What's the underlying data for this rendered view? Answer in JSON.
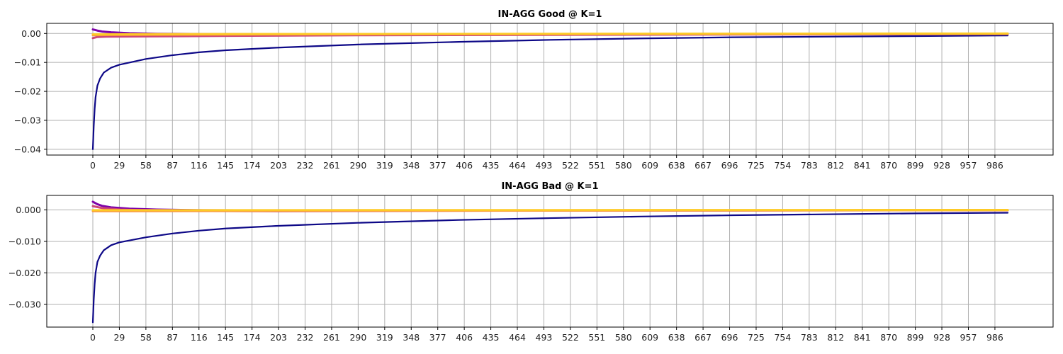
{
  "chart_data": [
    {
      "type": "line",
      "title": "IN-AGG Good @ K=1",
      "xlabel": "",
      "ylabel": "",
      "xlim": [
        0,
        1000
      ],
      "ylim": [
        -0.042,
        0.0035
      ],
      "grid": true,
      "x_ticks": [
        0,
        29,
        58,
        87,
        116,
        145,
        174,
        203,
        232,
        261,
        290,
        319,
        348,
        377,
        406,
        435,
        464,
        493,
        522,
        551,
        580,
        609,
        638,
        667,
        696,
        725,
        754,
        783,
        812,
        841,
        870,
        899,
        928,
        957,
        986
      ],
      "y_ticks": [
        0.0,
        -0.01,
        -0.02,
        -0.03,
        -0.04
      ],
      "y_tick_labels": [
        "0.00",
        "−0.01",
        "−0.02",
        "−0.03",
        "−0.04"
      ],
      "series": [
        {
          "color": "#0d0887",
          "values": [
            {
              "x": 0,
              "y": -0.04
            },
            {
              "x": 1,
              "y": -0.032
            },
            {
              "x": 2,
              "y": -0.026
            },
            {
              "x": 3,
              "y": -0.022
            },
            {
              "x": 5,
              "y": -0.018
            },
            {
              "x": 8,
              "y": -0.0155
            },
            {
              "x": 12,
              "y": -0.0135
            },
            {
              "x": 20,
              "y": -0.0118
            },
            {
              "x": 29,
              "y": -0.0108
            },
            {
              "x": 58,
              "y": -0.0088
            },
            {
              "x": 87,
              "y": -0.0075
            },
            {
              "x": 116,
              "y": -0.0065
            },
            {
              "x": 145,
              "y": -0.0058
            },
            {
              "x": 200,
              "y": -0.0049
            },
            {
              "x": 290,
              "y": -0.0038
            },
            {
              "x": 400,
              "y": -0.0029
            },
            {
              "x": 500,
              "y": -0.0022
            },
            {
              "x": 600,
              "y": -0.0017
            },
            {
              "x": 700,
              "y": -0.0013
            },
            {
              "x": 800,
              "y": -0.0011
            },
            {
              "x": 900,
              "y": -0.0009
            },
            {
              "x": 1000,
              "y": -0.0007
            }
          ]
        },
        {
          "color": "#7e03a8",
          "values": [
            {
              "x": 0,
              "y": 0.0014
            },
            {
              "x": 5,
              "y": 0.001
            },
            {
              "x": 10,
              "y": 0.0007
            },
            {
              "x": 20,
              "y": 0.0004
            },
            {
              "x": 40,
              "y": 0.0001
            },
            {
              "x": 70,
              "y": -0.0001
            },
            {
              "x": 120,
              "y": -0.0002
            },
            {
              "x": 300,
              "y": -0.0002
            },
            {
              "x": 1000,
              "y": -0.0001
            }
          ]
        },
        {
          "color": "#cc4778",
          "values": [
            {
              "x": 0,
              "y": -0.0016
            },
            {
              "x": 5,
              "y": -0.0012
            },
            {
              "x": 15,
              "y": -0.0011
            },
            {
              "x": 60,
              "y": -0.001
            },
            {
              "x": 150,
              "y": -0.0008
            },
            {
              "x": 300,
              "y": -0.0006
            },
            {
              "x": 600,
              "y": -0.0004
            },
            {
              "x": 1000,
              "y": -0.0002
            }
          ]
        },
        {
          "color": "#f89540",
          "values": [
            {
              "x": 0,
              "y": -0.0006
            },
            {
              "x": 20,
              "y": -0.0005
            },
            {
              "x": 100,
              "y": -0.0004
            },
            {
              "x": 400,
              "y": -0.0002
            },
            {
              "x": 1000,
              "y": -0.0001
            }
          ]
        },
        {
          "color": "#fdca26",
          "values": [
            {
              "x": 0,
              "y": -0.0003
            },
            {
              "x": 100,
              "y": -0.0002
            },
            {
              "x": 1000,
              "y": 0.0
            }
          ]
        }
      ]
    },
    {
      "type": "line",
      "title": "IN-AGG Bad @ K=1",
      "xlabel": "",
      "ylabel": "",
      "xlim": [
        0,
        1000
      ],
      "ylim": [
        -0.0372,
        0.0046
      ],
      "grid": true,
      "x_ticks": [
        0,
        29,
        58,
        87,
        116,
        145,
        174,
        203,
        232,
        261,
        290,
        319,
        348,
        377,
        406,
        435,
        464,
        493,
        522,
        551,
        580,
        609,
        638,
        667,
        696,
        725,
        754,
        783,
        812,
        841,
        870,
        899,
        928,
        957,
        986
      ],
      "y_ticks": [
        0.0,
        -0.01,
        -0.02,
        -0.03
      ],
      "y_tick_labels": [
        "0.000",
        "−0.010",
        "−0.020",
        "−0.030"
      ],
      "series": [
        {
          "color": "#0d0887",
          "values": [
            {
              "x": 0,
              "y": -0.0357
            },
            {
              "x": 1,
              "y": -0.0285
            },
            {
              "x": 2,
              "y": -0.0235
            },
            {
              "x": 3,
              "y": -0.02
            },
            {
              "x": 5,
              "y": -0.0165
            },
            {
              "x": 8,
              "y": -0.0145
            },
            {
              "x": 12,
              "y": -0.0128
            },
            {
              "x": 20,
              "y": -0.0112
            },
            {
              "x": 29,
              "y": -0.0103
            },
            {
              "x": 58,
              "y": -0.0087
            },
            {
              "x": 87,
              "y": -0.0075
            },
            {
              "x": 116,
              "y": -0.0066
            },
            {
              "x": 145,
              "y": -0.0059
            },
            {
              "x": 200,
              "y": -0.0051
            },
            {
              "x": 290,
              "y": -0.0041
            },
            {
              "x": 400,
              "y": -0.0032
            },
            {
              "x": 500,
              "y": -0.0026
            },
            {
              "x": 600,
              "y": -0.0021
            },
            {
              "x": 700,
              "y": -0.0017
            },
            {
              "x": 800,
              "y": -0.0014
            },
            {
              "x": 900,
              "y": -0.0011
            },
            {
              "x": 1000,
              "y": -0.0009
            }
          ]
        },
        {
          "color": "#7e03a8",
          "values": [
            {
              "x": 0,
              "y": 0.0026
            },
            {
              "x": 5,
              "y": 0.0018
            },
            {
              "x": 10,
              "y": 0.0013
            },
            {
              "x": 20,
              "y": 0.0008
            },
            {
              "x": 40,
              "y": 0.0004
            },
            {
              "x": 70,
              "y": 0.0001
            },
            {
              "x": 120,
              "y": -0.0001
            },
            {
              "x": 300,
              "y": -0.0002
            },
            {
              "x": 1000,
              "y": -0.0001
            }
          ]
        },
        {
          "color": "#cc4778",
          "values": [
            {
              "x": 0,
              "y": 0.0012
            },
            {
              "x": 10,
              "y": 0.0006
            },
            {
              "x": 30,
              "y": 0.0001
            },
            {
              "x": 80,
              "y": -0.0003
            },
            {
              "x": 200,
              "y": -0.0004
            },
            {
              "x": 500,
              "y": -0.0002
            },
            {
              "x": 1000,
              "y": -0.0001
            }
          ]
        },
        {
          "color": "#f89540",
          "values": [
            {
              "x": 0,
              "y": -0.0004
            },
            {
              "x": 30,
              "y": -0.0004
            },
            {
              "x": 200,
              "y": -0.0003
            },
            {
              "x": 1000,
              "y": -0.0001
            }
          ]
        },
        {
          "color": "#fdca26",
          "values": [
            {
              "x": 0,
              "y": -0.0001
            },
            {
              "x": 1000,
              "y": 0.0
            }
          ]
        }
      ]
    }
  ]
}
